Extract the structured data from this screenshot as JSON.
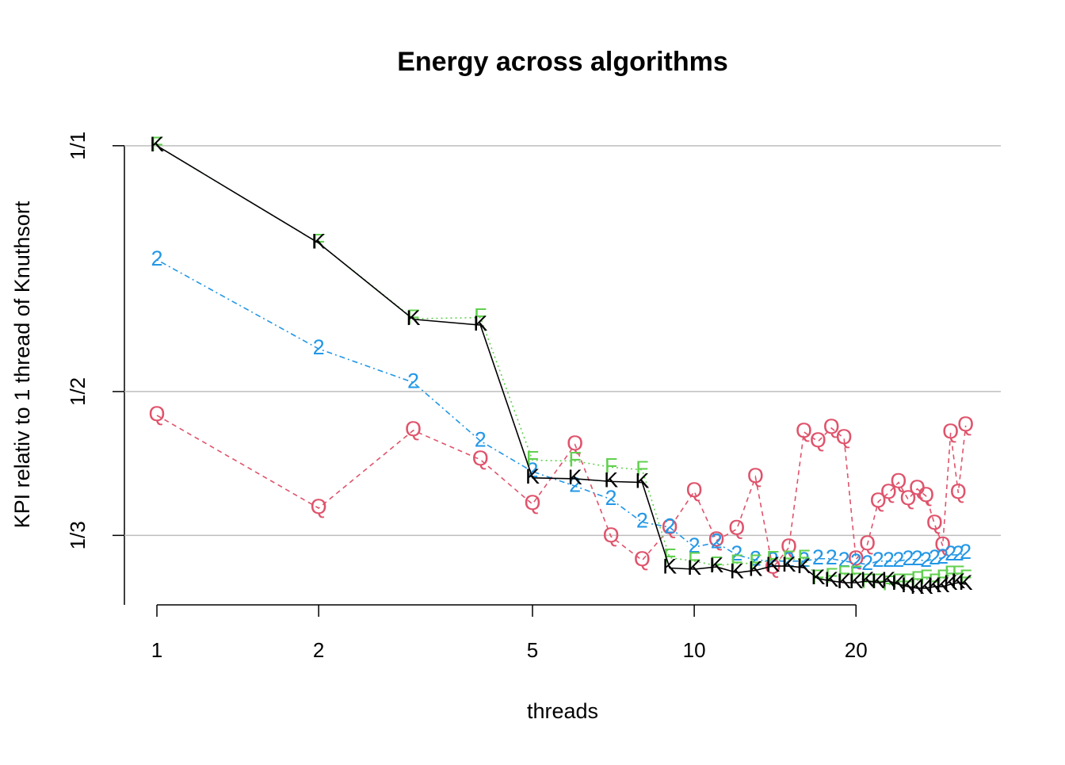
{
  "chart_data": {
    "type": "line",
    "title": "Energy across algorithms",
    "xlabel": "threads",
    "ylabel": "KPI relativ to 1 thread of Knuthsort",
    "x": [
      1,
      2,
      3,
      4,
      5,
      6,
      7,
      8,
      9,
      10,
      11,
      12,
      13,
      14,
      15,
      16,
      17,
      18,
      19,
      20,
      21,
      22,
      23,
      24,
      25,
      26,
      27,
      28,
      29,
      30,
      31,
      32
    ],
    "xscale": "log",
    "yscale": "log",
    "xlim": [
      0.87,
      37.2
    ],
    "ylim": [
      0.274,
      1.05
    ],
    "xticks": [
      1,
      2,
      5,
      10,
      20
    ],
    "yticks": [
      {
        "value": 1,
        "label": "1/1"
      },
      {
        "value": 0.5,
        "label": "1/2"
      },
      {
        "value": 0.3333,
        "label": "1/3"
      }
    ],
    "grid": true,
    "series": [
      {
        "marker": "Q",
        "color": "#DF536B",
        "dash": "dashed",
        "values": [
          0.4676,
          0.3599,
          0.4481,
          0.4126,
          0.364,
          0.4305,
          0.3322,
          0.3107,
          0.34,
          0.3773,
          0.3285,
          0.3392,
          0.3928,
          0.304,
          0.322,
          0.4461,
          0.4344,
          0.4511,
          0.4383,
          0.3114,
          0.3249,
          0.3664,
          0.3757,
          0.387,
          0.369,
          0.38,
          0.3724,
          0.3442,
          0.3237,
          0.4451,
          0.3757,
          0.4542
        ]
      },
      {
        "marker": "2",
        "color": "#2297E6",
        "dash": "dotdash",
        "values": [
          0.725,
          0.564,
          0.513,
          0.435,
          0.399,
          0.383,
          0.369,
          0.346,
          0.341,
          0.3226,
          0.3265,
          0.3155,
          0.311,
          0.31,
          0.31,
          0.31,
          0.3121,
          0.3121,
          0.31,
          0.3085,
          0.3071,
          0.31,
          0.31,
          0.31,
          0.3114,
          0.3114,
          0.31,
          0.3121,
          0.3128,
          0.3155,
          0.3155,
          0.317
        ]
      },
      {
        "marker": "F",
        "color": "#61D04F",
        "dash": "dotted",
        "values": [
          1.0,
          0.76,
          0.614,
          0.616,
          0.412,
          0.411,
          0.404,
          0.401,
          0.313,
          0.31,
          0.306,
          0.308,
          0.308,
          0.311,
          0.3114,
          0.3121,
          0.295,
          0.2963,
          0.2985,
          0.2985,
          0.2917,
          0.2917,
          0.29,
          0.2917,
          0.2917,
          0.2937,
          0.295,
          0.2917,
          0.295,
          0.2985,
          0.2985,
          0.295
        ]
      },
      {
        "marker": "K",
        "color": "#000000",
        "dash": "solid",
        "values": [
          1.0,
          0.76,
          0.613,
          0.603,
          0.392,
          0.391,
          0.388,
          0.387,
          0.304,
          0.303,
          0.305,
          0.3,
          0.302,
          0.3057,
          0.3057,
          0.3043,
          0.295,
          0.2931,
          0.2917,
          0.2917,
          0.2931,
          0.2917,
          0.2931,
          0.2904,
          0.2885,
          0.2872,
          0.2872,
          0.2885,
          0.2885,
          0.2904,
          0.2917,
          0.2904
        ]
      }
    ]
  }
}
